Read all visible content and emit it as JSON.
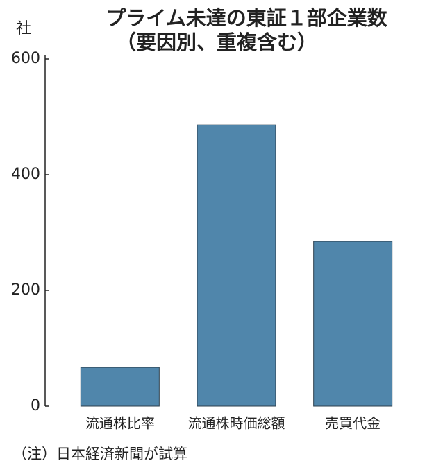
{
  "chart_data": {
    "type": "bar",
    "title": "プライム未達の東証１部企業数",
    "subtitle": "（要因別、重複含む）",
    "ylabel": "社",
    "categories": [
      "流通株比率",
      "流通株時価総額",
      "売買代金"
    ],
    "values": [
      67,
      486,
      285
    ],
    "color": "#5086ab",
    "ylim": [
      0,
      600
    ],
    "yticks": [
      0,
      200,
      400,
      600
    ],
    "grid": false,
    "note": "（注）日本経済新聞が試算"
  }
}
